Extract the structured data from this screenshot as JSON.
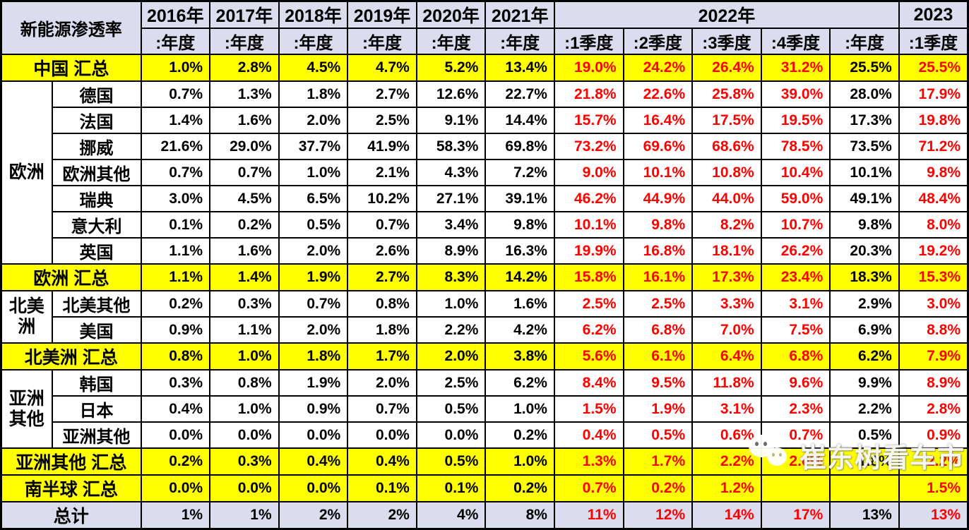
{
  "title": "新能源渗透率",
  "colors": {
    "header_bg": "#DBDCEE",
    "summary_row_bg": "#FFFF00",
    "total_row_bg": "#DBDCEE",
    "quarter_value_text": "#FF0000",
    "year_value_text": "#000000",
    "grid_border": "#000000"
  },
  "watermark": {
    "text": "崔东树看车市",
    "icon": "wechat-logo"
  },
  "chart_data": {
    "type": "table",
    "title": "新能源渗透率",
    "header_groups": [
      {
        "label": "2016年",
        "span": 1
      },
      {
        "label": "2017年",
        "span": 1
      },
      {
        "label": "2018年",
        "span": 1
      },
      {
        "label": "2019年",
        "span": 1
      },
      {
        "label": "2020年",
        "span": 1
      },
      {
        "label": "2021年",
        "span": 1
      },
      {
        "label": "2022年",
        "span": 5
      },
      {
        "label": "2023",
        "span": 1
      }
    ],
    "column_periods": [
      ":年度",
      ":年度",
      ":年度",
      ":年度",
      ":年度",
      ":年度",
      ":1季度",
      ":2季度",
      ":3季度",
      ":4季度",
      ":年度",
      ":1季度"
    ],
    "red_value_columns": [
      6,
      7,
      8,
      9,
      11
    ],
    "rows": [
      {
        "type": "summary",
        "label": "中国 汇总",
        "values": [
          "1.0%",
          "2.8%",
          "4.5%",
          "4.7%",
          "5.2%",
          "13.4%",
          "19.0%",
          "24.2%",
          "26.4%",
          "31.2%",
          "25.5%",
          "25.5%"
        ]
      },
      {
        "type": "detail",
        "group": {
          "label": "欧洲",
          "rowspan": 7
        },
        "label": "德国",
        "values": [
          "0.7%",
          "1.3%",
          "1.8%",
          "2.7%",
          "12.6%",
          "22.7%",
          "21.8%",
          "22.6%",
          "25.8%",
          "39.0%",
          "28.0%",
          "17.9%"
        ]
      },
      {
        "type": "detail",
        "label": "法国",
        "values": [
          "1.4%",
          "1.6%",
          "2.0%",
          "2.5%",
          "9.1%",
          "14.4%",
          "15.7%",
          "16.4%",
          "17.5%",
          "19.5%",
          "17.3%",
          "19.8%"
        ]
      },
      {
        "type": "detail",
        "label": "挪威",
        "values": [
          "21.6%",
          "29.0%",
          "37.7%",
          "41.9%",
          "58.3%",
          "69.8%",
          "73.2%",
          "69.6%",
          "68.6%",
          "78.5%",
          "73.5%",
          "71.2%"
        ]
      },
      {
        "type": "detail",
        "label": "欧洲其他",
        "values": [
          "0.7%",
          "0.7%",
          "1.0%",
          "2.1%",
          "4.3%",
          "7.2%",
          "9.0%",
          "10.1%",
          "10.8%",
          "10.4%",
          "10.1%",
          "9.8%"
        ]
      },
      {
        "type": "detail",
        "label": "瑞典",
        "values": [
          "3.0%",
          "4.5%",
          "6.5%",
          "10.2%",
          "27.1%",
          "39.1%",
          "46.2%",
          "44.9%",
          "44.0%",
          "59.0%",
          "49.1%",
          "48.4%"
        ]
      },
      {
        "type": "detail",
        "label": "意大利",
        "values": [
          "0.1%",
          "0.2%",
          "0.5%",
          "0.7%",
          "3.4%",
          "9.8%",
          "10.1%",
          "9.8%",
          "8.2%",
          "10.7%",
          "9.8%",
          "8.0%"
        ]
      },
      {
        "type": "detail",
        "label": "英国",
        "values": [
          "1.1%",
          "1.6%",
          "2.0%",
          "2.6%",
          "8.9%",
          "16.3%",
          "19.9%",
          "16.8%",
          "18.1%",
          "26.2%",
          "20.3%",
          "19.2%"
        ]
      },
      {
        "type": "summary",
        "label": "欧洲 汇总",
        "values": [
          "1.1%",
          "1.4%",
          "1.9%",
          "2.7%",
          "8.3%",
          "14.2%",
          "15.8%",
          "16.1%",
          "17.3%",
          "23.4%",
          "18.3%",
          "15.3%"
        ]
      },
      {
        "type": "detail",
        "group": {
          "label": "北美洲",
          "rowspan": 2
        },
        "label": "北美其他",
        "values": [
          "0.2%",
          "0.3%",
          "0.7%",
          "0.8%",
          "1.0%",
          "1.6%",
          "2.5%",
          "2.5%",
          "3.3%",
          "3.1%",
          "2.9%",
          "3.0%"
        ]
      },
      {
        "type": "detail",
        "label": "美国",
        "values": [
          "0.9%",
          "1.1%",
          "2.0%",
          "1.8%",
          "2.2%",
          "4.2%",
          "6.2%",
          "6.8%",
          "7.0%",
          "7.5%",
          "6.9%",
          "8.8%"
        ]
      },
      {
        "type": "summary",
        "label": "北美洲 汇总",
        "values": [
          "0.8%",
          "1.0%",
          "1.8%",
          "1.7%",
          "2.0%",
          "3.8%",
          "5.6%",
          "6.1%",
          "6.4%",
          "6.8%",
          "6.2%",
          "7.9%"
        ]
      },
      {
        "type": "detail",
        "group": {
          "label": "亚洲其他",
          "rowspan": 3
        },
        "label": "韩国",
        "values": [
          "0.3%",
          "0.8%",
          "1.9%",
          "2.0%",
          "2.5%",
          "6.2%",
          "8.4%",
          "9.5%",
          "11.8%",
          "9.6%",
          "9.9%",
          "8.9%"
        ]
      },
      {
        "type": "detail",
        "label": "日本",
        "values": [
          "0.4%",
          "1.0%",
          "0.9%",
          "0.7%",
          "0.5%",
          "1.0%",
          "1.5%",
          "1.9%",
          "3.1%",
          "2.3%",
          "2.2%",
          "2.8%"
        ]
      },
      {
        "type": "detail",
        "label": "亚洲其他",
        "values": [
          "0.0%",
          "0.0%",
          "0.0%",
          "0.0%",
          "0.0%",
          "0.2%",
          "0.4%",
          "0.5%",
          "0.6%",
          "0.7%",
          "0.5%",
          "0.9%"
        ]
      },
      {
        "type": "summary",
        "label": "亚洲其他 汇总",
        "values": [
          "0.2%",
          "0.3%",
          "0.4%",
          "0.4%",
          "0.5%",
          "1.0%",
          "1.3%",
          "1.7%",
          "2.2%",
          "2.0%",
          "1.8%",
          "2.2%"
        ]
      },
      {
        "type": "summary",
        "label": "南半球 汇总",
        "values": [
          "0.0%",
          "0.0%",
          "0.0%",
          "0.1%",
          "0.1%",
          "0.2%",
          "0.7%",
          "0.2%",
          "1.2%",
          "",
          "",
          "1.5%"
        ]
      },
      {
        "type": "total",
        "label": "总计",
        "values": [
          "1%",
          "1%",
          "2%",
          "2%",
          "4%",
          "8%",
          "11%",
          "12%",
          "14%",
          "17%",
          "13%",
          "13%"
        ]
      }
    ]
  }
}
